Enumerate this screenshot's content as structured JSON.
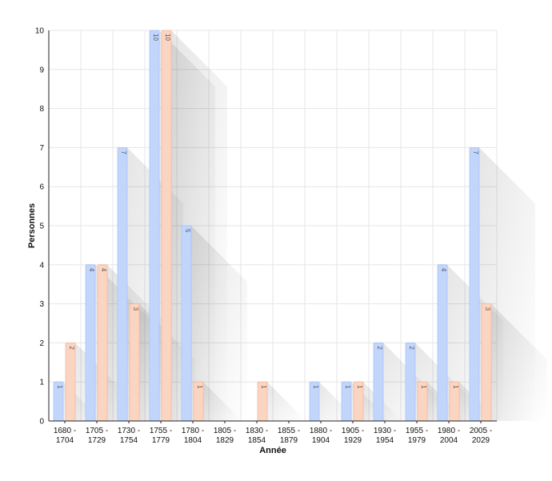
{
  "chart_data": {
    "type": "bar",
    "title": "",
    "xlabel": "Année",
    "ylabel": "Personnes",
    "ylim": [
      0,
      10
    ],
    "yticks": [
      "0",
      "1",
      "2",
      "3",
      "4",
      "5",
      "6",
      "7",
      "8",
      "9",
      "10"
    ],
    "categories": [
      [
        "1680 -",
        "1704"
      ],
      [
        "1705 -",
        "1729"
      ],
      [
        "1730 -",
        "1754"
      ],
      [
        "1755 -",
        "1779"
      ],
      [
        "1780 -",
        "1804"
      ],
      [
        "1805 -",
        "1829"
      ],
      [
        "1830 -",
        "1854"
      ],
      [
        "1855 -",
        "1879"
      ],
      [
        "1880 -",
        "1904"
      ],
      [
        "1905 -",
        "1929"
      ],
      [
        "1930 -",
        "1954"
      ],
      [
        "1955 -",
        "1979"
      ],
      [
        "1980 -",
        "2004"
      ],
      [
        "2005 -",
        "2029"
      ]
    ],
    "series": [
      {
        "values": [
          1,
          4,
          7,
          10,
          5,
          0,
          0,
          0,
          1,
          1,
          2,
          2,
          4,
          7
        ],
        "color": "#c2d6fc",
        "stroke": "#a6c1f5"
      },
      {
        "values": [
          2,
          4,
          3,
          10,
          1,
          0,
          1,
          0,
          0,
          1,
          0,
          1,
          1,
          3
        ],
        "color": "#fcd5c2",
        "stroke": "#f0b89e"
      }
    ],
    "grid": true,
    "legend": "none"
  }
}
